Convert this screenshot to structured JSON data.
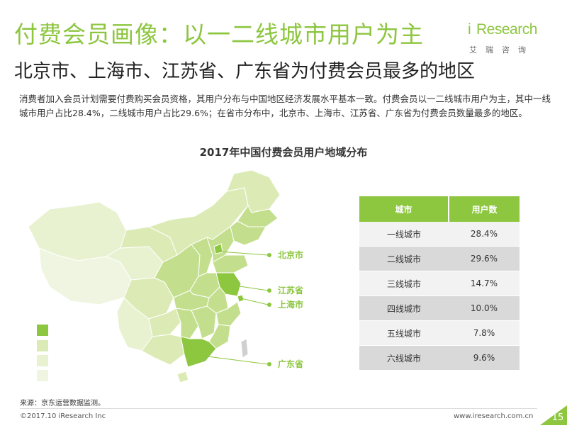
{
  "header": {
    "title": "付费会员画像：以一二线城市用户为主",
    "subtitle": "北京市、上海市、江苏省、广东省为付费会员最多的地区",
    "description": "消费者加入会员计划需要付费购买会员资格，其用户分布与中国地区经济发展水平基本一致。付费会员以一二线城市用户为主，其中一线城市用户占比28.4%，二线城市用户占比29.6%；在省市分布中，北京市、上海市、江苏省、广东省为付费会员数量最多的地区。"
  },
  "logo": {
    "i": "i",
    "text": "Research",
    "cn": "艾瑞咨询"
  },
  "map": {
    "labels": [
      {
        "name": "北京市"
      },
      {
        "name": "江苏省"
      },
      {
        "name": "上海市"
      },
      {
        "name": "广东省"
      }
    ],
    "colors": {
      "dark": "#8dc63f",
      "mid": "#c3df8e",
      "light": "#dcebb6",
      "lighter": "#e8f2d0",
      "lightest": "#f0f5e2",
      "label": "#8dc63f"
    }
  },
  "chart_data": {
    "type": "table",
    "title": "2017年中国付费会员用户地域分布",
    "columns": [
      "城市",
      "用户数"
    ],
    "rows": [
      [
        "一线城市",
        "28.4%"
      ],
      [
        "二线城市",
        "29.6%"
      ],
      [
        "三线城市",
        "14.7%"
      ],
      [
        "四线城市",
        "10.0%"
      ],
      [
        "五线城市",
        "7.8%"
      ],
      [
        "六线城市",
        "9.6%"
      ]
    ]
  },
  "footer": {
    "source": "来源：京东运营数据监测。",
    "copyright": "©2017.10 iResearch Inc",
    "website": "www.iresearch.com.cn",
    "page": "15"
  }
}
